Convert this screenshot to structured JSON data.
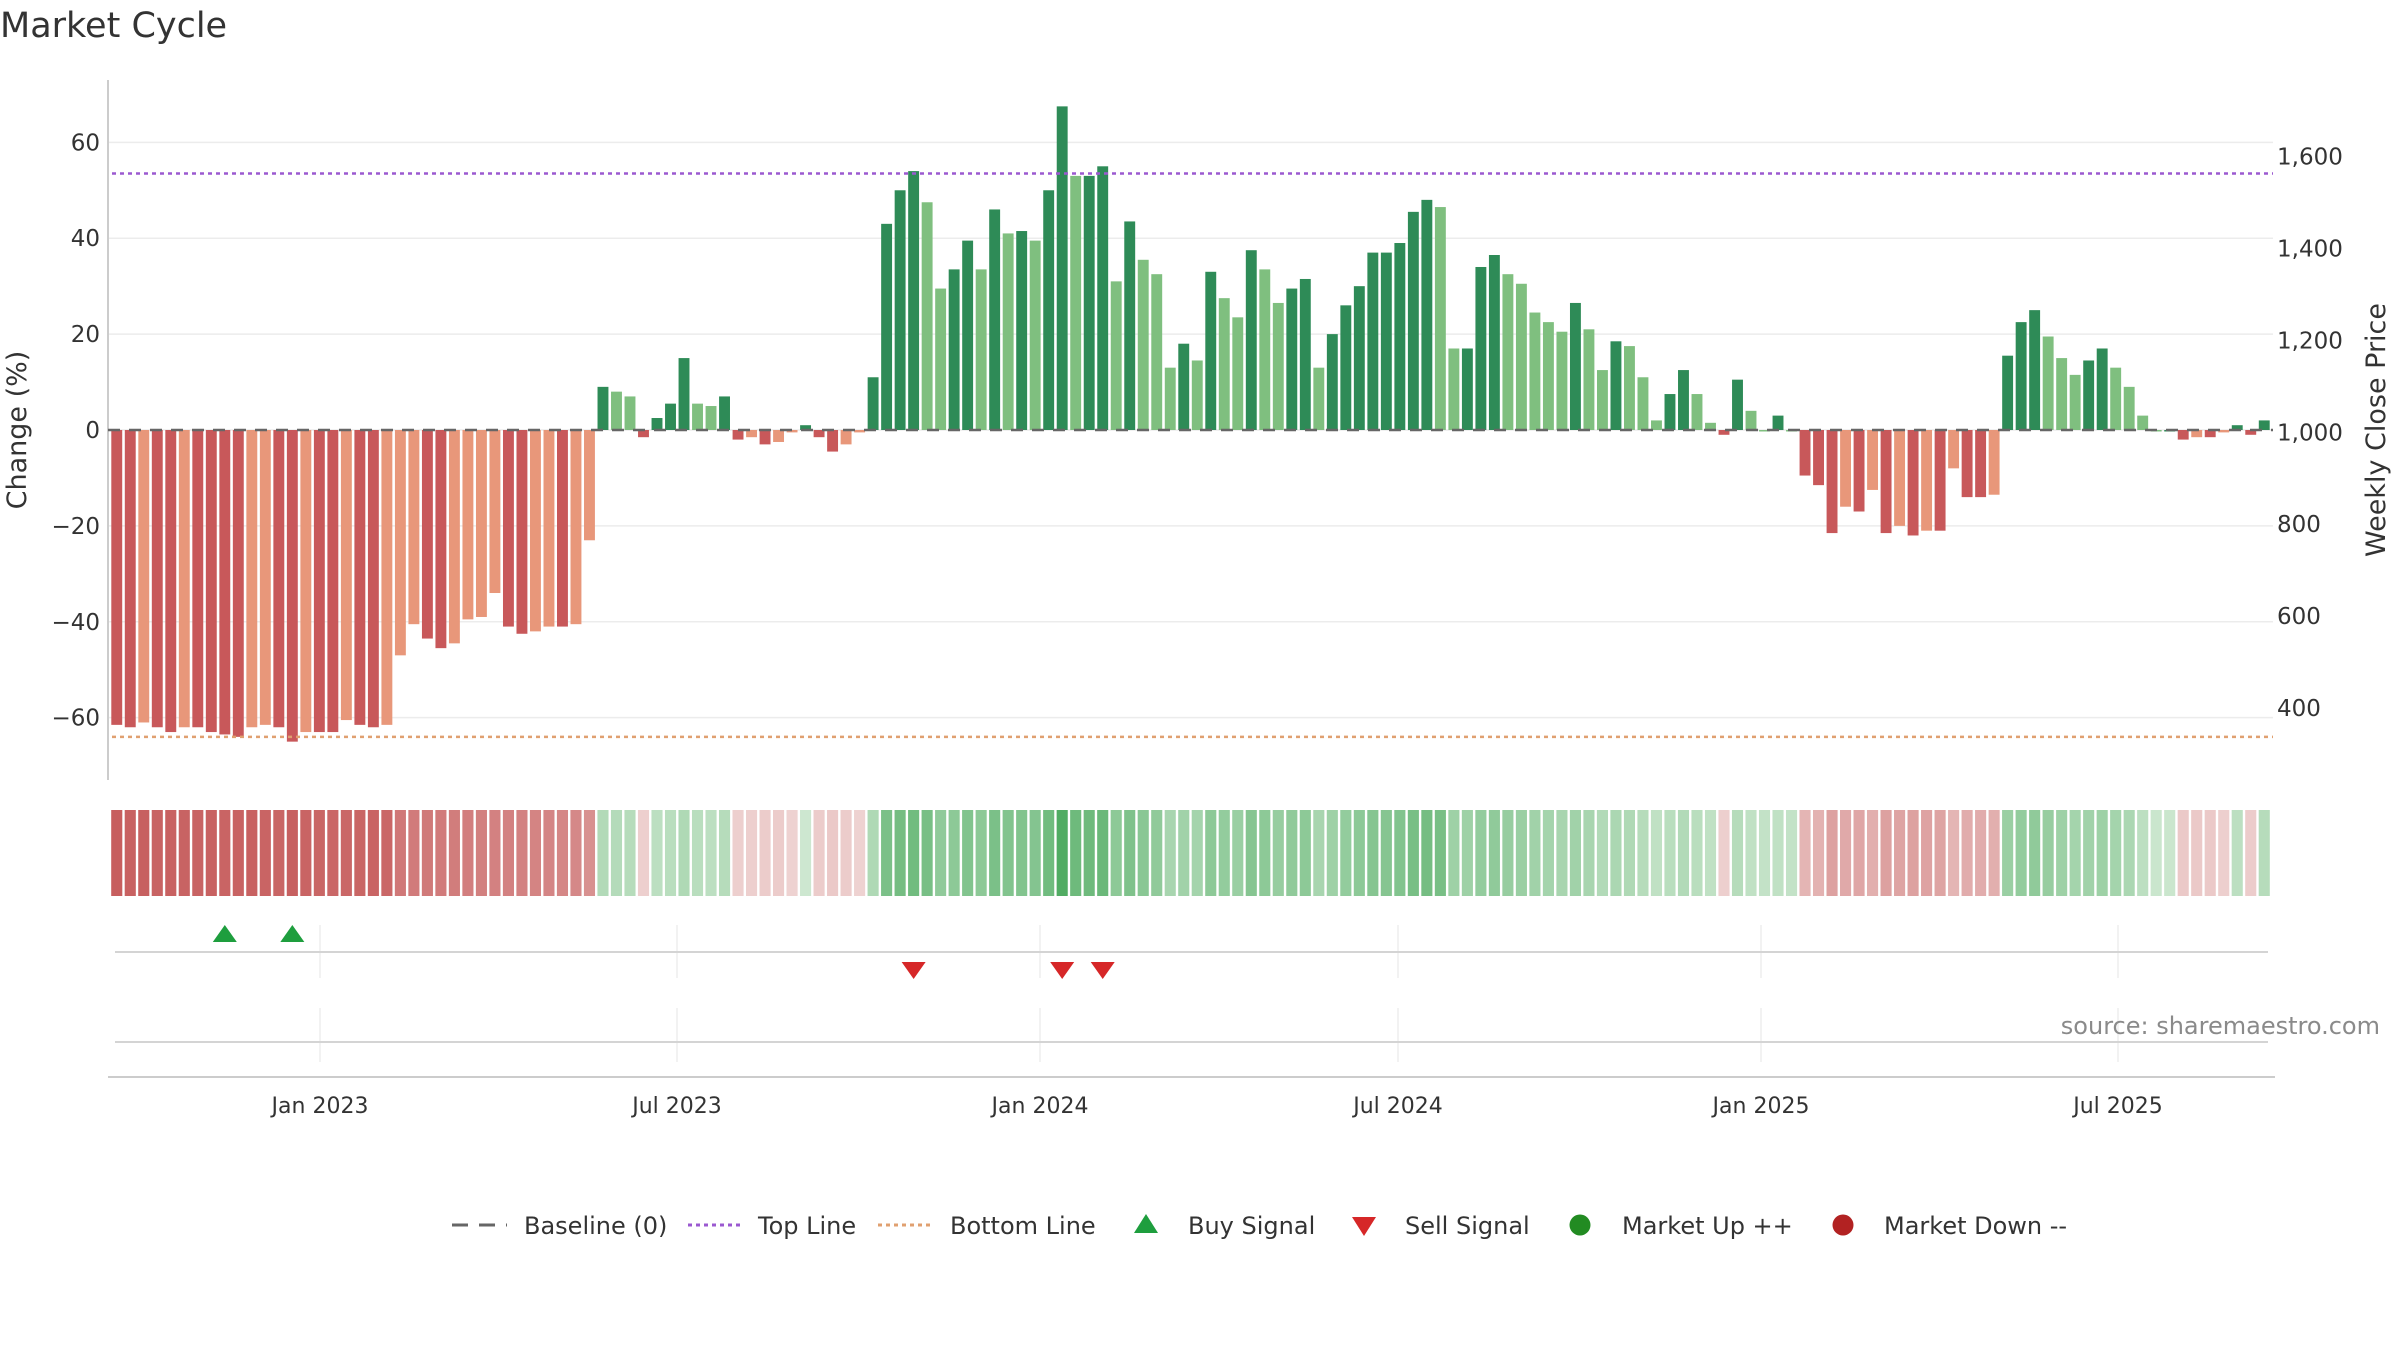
{
  "title": "Market Cycle",
  "source": "source: sharemaestro.com",
  "colors": {
    "up_strong": "#2e8b57",
    "up_light": "#7fbf7f",
    "down_strong": "#c8585a",
    "down_light": "#e8977a",
    "top_line": "#9b59d0",
    "bottom_line": "#e0a070",
    "baseline": "#666666",
    "buy": "#1e9e3e",
    "sell": "#d62728",
    "market_up": "#228b22",
    "market_down": "#b22222"
  },
  "chart_data": {
    "type": "bar",
    "title": "Market Cycle",
    "ylabel": "Change (%)",
    "y2label": "Weekly Close Price",
    "ylim": [
      -73,
      73
    ],
    "y2lim": [
      243,
      1767
    ],
    "yticks": [
      60,
      40,
      20,
      0,
      -20,
      -40,
      -60
    ],
    "ytick_labels": [
      "60",
      "40",
      "20",
      "0",
      "−20",
      "−40",
      "−60"
    ],
    "y2ticks": [
      1600,
      1400,
      1200,
      1000,
      800,
      600,
      400
    ],
    "y2tick_labels": [
      "1,600",
      "1,400",
      "1,200",
      "1,000",
      "800",
      "600",
      "400"
    ],
    "top_line": 53.5,
    "bottom_line": -64,
    "x_ticks": [
      "Jan 2023",
      "Jul 2023",
      "Jan 2024",
      "Jul 2024",
      "Jan 2025",
      "Jul 2025"
    ],
    "values": [
      -61.5,
      -62,
      -61,
      -62,
      -63,
      -62,
      -62,
      -63,
      -63.5,
      -64,
      -62,
      -61.5,
      -62,
      -65,
      -63,
      -63,
      -63,
      -60.5,
      -61.5,
      -62,
      -61.5,
      -47,
      -40.5,
      -43.5,
      -45.5,
      -44.5,
      -39.5,
      -39,
      -34,
      -41,
      -42.5,
      -42,
      -41,
      -41,
      -40.5,
      -23,
      9,
      8,
      7,
      -1.5,
      2.5,
      5.5,
      15,
      5.5,
      5,
      7,
      -2,
      -1.5,
      -3,
      -2.5,
      -0.5,
      1,
      -1.5,
      -4.5,
      -3,
      -0.5,
      11,
      43,
      50,
      54,
      47.5,
      29.5,
      33.5,
      39.5,
      33.5,
      46,
      41,
      41.5,
      39.5,
      50,
      67.5,
      53,
      53,
      55,
      31,
      43.5,
      35.5,
      32.5,
      13,
      18,
      14.5,
      33,
      27.5,
      23.5,
      37.5,
      33.5,
      26.5,
      29.5,
      31.5,
      13,
      20,
      26,
      30,
      37,
      37,
      39,
      45.5,
      48,
      46.5,
      17,
      17,
      34,
      36.5,
      32.5,
      30.5,
      24.5,
      22.5,
      20.5,
      26.5,
      21,
      12.5,
      18.5,
      17.5,
      11,
      2,
      7.5,
      12.5,
      7.5,
      1.5,
      -1,
      10.5,
      4,
      0,
      3,
      0,
      -9.5,
      -11.5,
      -21.5,
      -16,
      -17,
      -12.5,
      -21.5,
      -20,
      -22,
      -21,
      -21,
      -8,
      -14,
      -14,
      -13.5,
      15.5,
      22.5,
      25,
      19.5,
      15,
      11.5,
      14.5,
      17,
      13,
      9,
      3,
      0,
      0,
      -2,
      -1.5,
      -1.5,
      -0.5,
      1,
      -1,
      2
    ],
    "strength": [
      0.9,
      0.88,
      0.89,
      0.87,
      0.88,
      0.87,
      0.87,
      0.88,
      0.86,
      0.87,
      0.88,
      0.86,
      0.85,
      0.89,
      0.86,
      0.85,
      0.84,
      0.84,
      0.85,
      0.86,
      0.84,
      0.72,
      0.7,
      0.71,
      0.7,
      0.69,
      0.68,
      0.67,
      0.66,
      0.66,
      0.65,
      0.64,
      0.63,
      0.62,
      0.61,
      0.55,
      0.28,
      0.27,
      0.26,
      0.12,
      0.22,
      0.24,
      0.3,
      0.24,
      0.22,
      0.26,
      0.12,
      0.12,
      0.14,
      0.14,
      0.1,
      0.12,
      0.14,
      0.16,
      0.14,
      0.1,
      0.3,
      0.6,
      0.64,
      0.66,
      0.62,
      0.48,
      0.5,
      0.56,
      0.5,
      0.6,
      0.56,
      0.56,
      0.55,
      0.66,
      0.85,
      0.68,
      0.68,
      0.7,
      0.5,
      0.58,
      0.52,
      0.48,
      0.34,
      0.38,
      0.36,
      0.5,
      0.46,
      0.42,
      0.54,
      0.5,
      0.44,
      0.48,
      0.5,
      0.34,
      0.4,
      0.46,
      0.5,
      0.54,
      0.54,
      0.56,
      0.62,
      0.64,
      0.62,
      0.4,
      0.4,
      0.46,
      0.48,
      0.44,
      0.42,
      0.38,
      0.36,
      0.34,
      0.38,
      0.34,
      0.28,
      0.32,
      0.3,
      0.26,
      0.2,
      0.24,
      0.28,
      0.24,
      0.2,
      0.12,
      0.26,
      0.2,
      0.18,
      0.2,
      0.18,
      0.3,
      0.32,
      0.44,
      0.38,
      0.4,
      0.34,
      0.44,
      0.42,
      0.44,
      0.43,
      0.42,
      0.3,
      0.36,
      0.36,
      0.34,
      0.42,
      0.46,
      0.48,
      0.44,
      0.4,
      0.36,
      0.38,
      0.4,
      0.36,
      0.32,
      0.22,
      0.14,
      0.14,
      0.16,
      0.16,
      0.16,
      0.12,
      0.22,
      0.14,
      0.26
    ],
    "buy_signals": [
      8,
      13
    ],
    "sell_signals": [
      59,
      70,
      73
    ],
    "legend": [
      "Baseline (0)",
      "Top Line",
      "Bottom Line",
      "Buy Signal",
      "Sell Signal",
      "Market Up ++",
      "Market Down --"
    ]
  }
}
